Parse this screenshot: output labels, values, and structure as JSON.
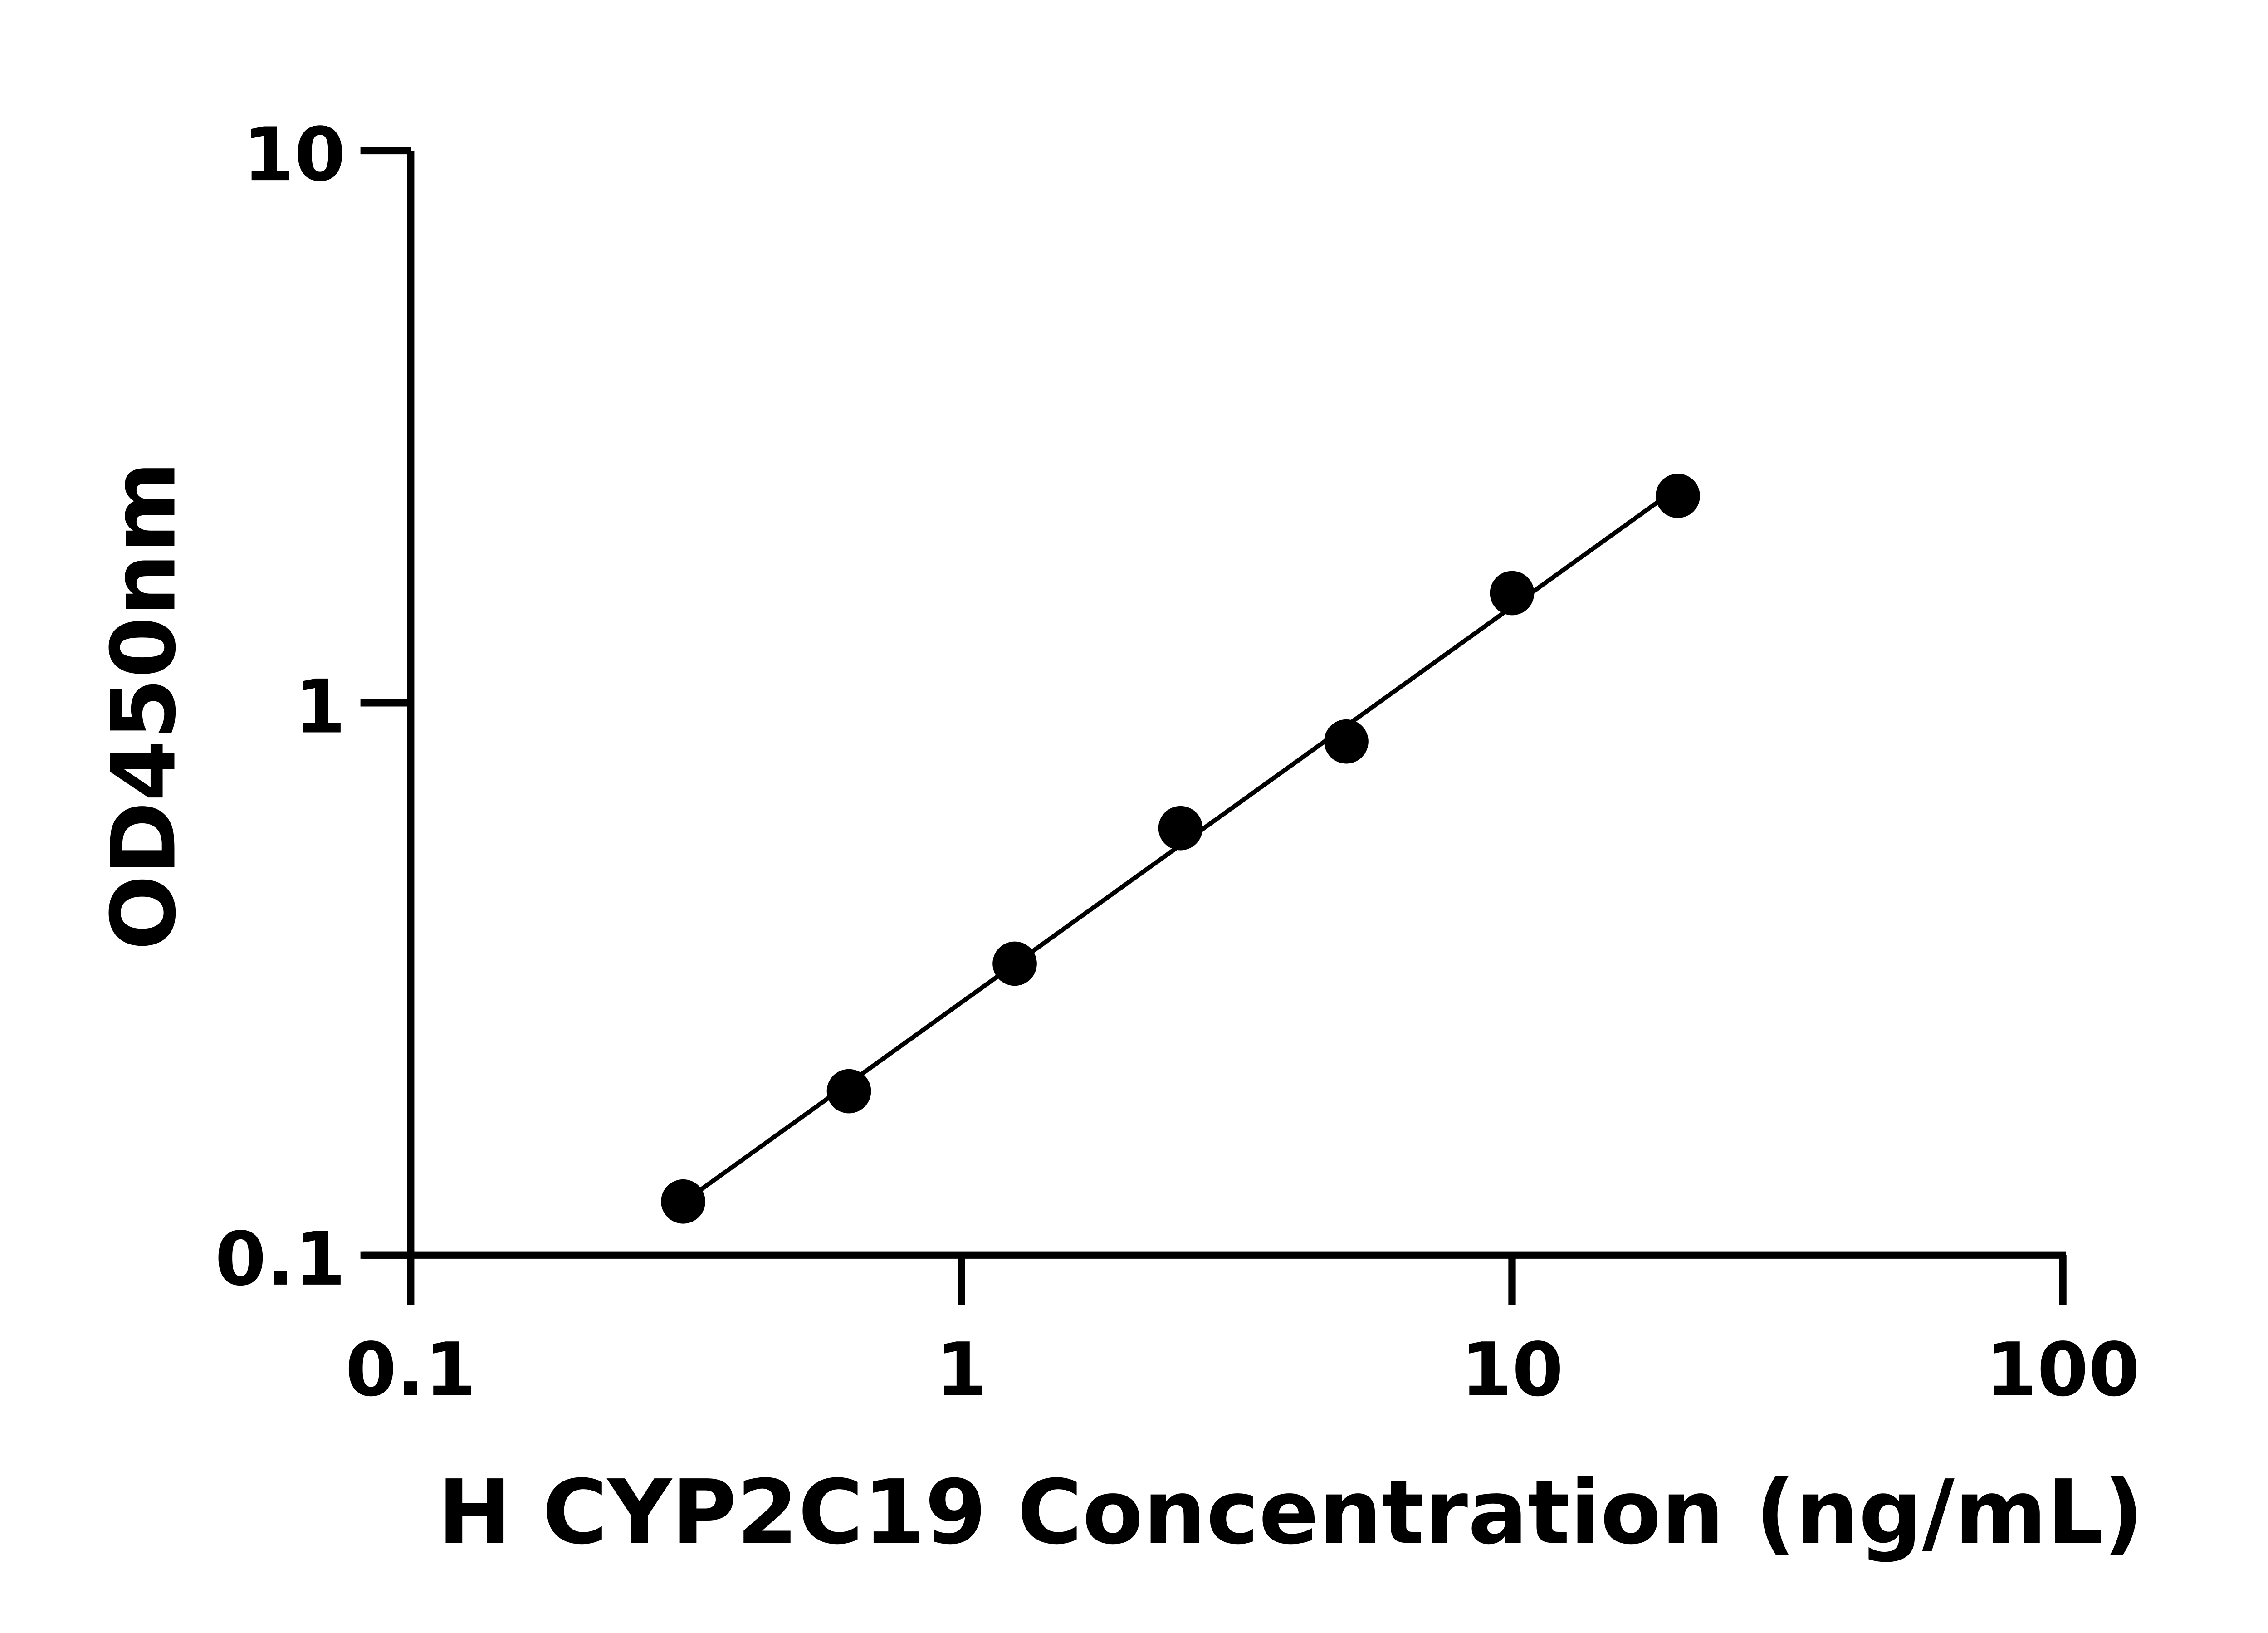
{
  "chart_data": {
    "type": "scatter",
    "title": "",
    "xlabel": "H CYP2C19 Concentration (ng/mL)",
    "ylabel": "OD450nm",
    "x_scale": "log",
    "y_scale": "log",
    "xlim": [
      0.1,
      100
    ],
    "ylim": [
      0.1,
      10
    ],
    "x_ticks": [
      "0.1",
      "1",
      "10",
      "100"
    ],
    "y_ticks": [
      "0.1",
      "1",
      "10"
    ],
    "grid": false,
    "fit_line": true,
    "marker_color": "#000000",
    "series": [
      {
        "x": [
          0.3125,
          0.625,
          1.25,
          2.5,
          5,
          10,
          20
        ],
        "y": [
          0.125,
          0.198,
          0.337,
          0.593,
          0.851,
          1.58,
          2.37
        ]
      }
    ]
  }
}
